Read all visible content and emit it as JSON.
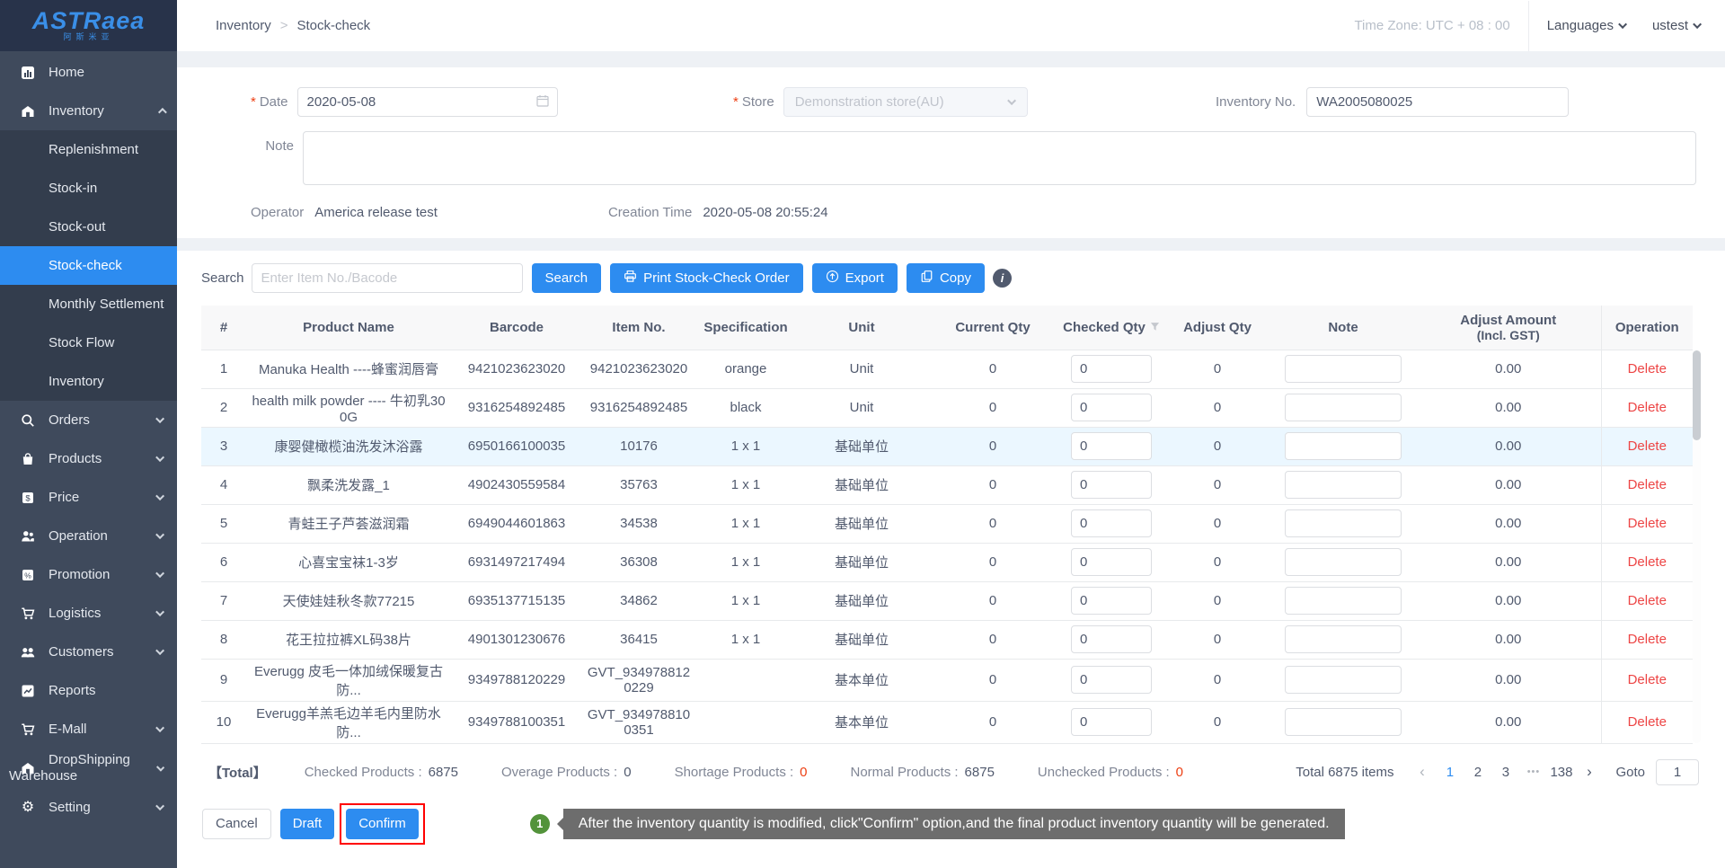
{
  "brand": {
    "logo_text": "ASTRaea",
    "logo_sub": "阿斯米亚"
  },
  "topbar": {
    "breadcrumb_parent": "Inventory",
    "breadcrumb_current": "Stock-check",
    "timezone": "Time Zone: UTC + 08 : 00",
    "languages_label": "Languages",
    "user": "ustest"
  },
  "sidebar": {
    "items": [
      {
        "type": "item",
        "label": "Home",
        "icon": "chart-bar-icon"
      },
      {
        "type": "item",
        "label": "Inventory",
        "icon": "warehouse-icon",
        "chevron": "up"
      },
      {
        "type": "subitem",
        "label": "Replenishment"
      },
      {
        "type": "subitem",
        "label": "Stock-in"
      },
      {
        "type": "subitem",
        "label": "Stock-out"
      },
      {
        "type": "subitem",
        "label": "Stock-check",
        "active": true
      },
      {
        "type": "subitem",
        "label": "Monthly Settlement"
      },
      {
        "type": "subitem",
        "label": "Stock Flow"
      },
      {
        "type": "subitem",
        "label": "Inventory"
      },
      {
        "type": "item",
        "label": "Orders",
        "icon": "search-icon",
        "chevron": "down"
      },
      {
        "type": "item",
        "label": "Products",
        "icon": "bag-icon",
        "chevron": "down"
      },
      {
        "type": "item",
        "label": "Price",
        "icon": "price-tag-icon",
        "chevron": "down"
      },
      {
        "type": "item",
        "label": "Operation",
        "icon": "users-icon",
        "chevron": "down"
      },
      {
        "type": "item",
        "label": "Promotion",
        "icon": "promotion-tag-icon",
        "chevron": "down"
      },
      {
        "type": "item",
        "label": "Logistics",
        "icon": "cart-icon",
        "chevron": "down"
      },
      {
        "type": "item",
        "label": "Customers",
        "icon": "customers-icon",
        "chevron": "down"
      },
      {
        "type": "item",
        "label": "Reports",
        "icon": "report-chart-icon"
      },
      {
        "type": "item",
        "label": "E-Mall",
        "icon": "cart-icon",
        "chevron": "down"
      },
      {
        "type": "item",
        "label": "DropShipping Warehouse",
        "icon": "warehouse-icon",
        "chevron": "down"
      },
      {
        "type": "item",
        "label": "Setting",
        "icon": "gear-icon",
        "chevron": "down"
      }
    ]
  },
  "form": {
    "date": {
      "label": "Date",
      "required": true,
      "value": "2020-05-08"
    },
    "store": {
      "label": "Store",
      "required": true,
      "value": "Demonstration store(AU)"
    },
    "inventory_no": {
      "label": "Inventory No.",
      "value": "WA2005080025"
    },
    "note": {
      "label": "Note",
      "value": ""
    },
    "operator": {
      "label": "Operator",
      "value": "America release test"
    },
    "creation_time": {
      "label": "Creation Time",
      "value": "2020-05-08 20:55:24"
    }
  },
  "search": {
    "label": "Search",
    "placeholder": "Enter Item No./Bacode",
    "buttons": {
      "search": "Search",
      "print": "Print Stock-Check Order",
      "export": "Export",
      "copy": "Copy"
    }
  },
  "table": {
    "columns": [
      {
        "key": "num",
        "label": "#"
      },
      {
        "key": "name",
        "label": "Product Name"
      },
      {
        "key": "barcode",
        "label": "Barcode"
      },
      {
        "key": "item_no",
        "label": "Item No."
      },
      {
        "key": "spec",
        "label": "Specification"
      },
      {
        "key": "unit",
        "label": "Unit"
      },
      {
        "key": "current_qty",
        "label": "Current Qty"
      },
      {
        "key": "checked_qty",
        "label": "Checked Qty",
        "filter": true
      },
      {
        "key": "adjust_qty",
        "label": "Adjust Qty"
      },
      {
        "key": "note",
        "label": "Note"
      },
      {
        "key": "adjust_amount",
        "label": "Adjust Amount",
        "sub": "(Incl. GST)"
      },
      {
        "key": "operation",
        "label": "Operation"
      }
    ],
    "rows": [
      {
        "num": "1",
        "name": "Manuka Health ----蜂蜜润唇膏",
        "barcode": "9421023623020",
        "item_no": "9421023623020",
        "spec": "orange",
        "unit": "Unit",
        "current_qty": "0",
        "checked_qty": "0",
        "adjust_qty": "0",
        "note": "",
        "adjust_amount": "0.00",
        "operation": "Delete"
      },
      {
        "num": "2",
        "name": "health milk powder ---- 牛初乳300G",
        "barcode": "9316254892485",
        "item_no": "9316254892485",
        "spec": "black",
        "unit": "Unit",
        "current_qty": "0",
        "checked_qty": "0",
        "adjust_qty": "0",
        "note": "",
        "adjust_amount": "0.00",
        "operation": "Delete"
      },
      {
        "num": "3",
        "name": "康婴健橄榄油洗发沐浴露",
        "barcode": "6950166100035",
        "item_no": "10176",
        "spec": "1 x 1",
        "unit": "基础单位",
        "current_qty": "0",
        "checked_qty": "0",
        "adjust_qty": "0",
        "note": "",
        "adjust_amount": "0.00",
        "operation": "Delete",
        "highlighted": true
      },
      {
        "num": "4",
        "name": "飘柔洗发露_1",
        "barcode": "4902430559584",
        "item_no": "35763",
        "spec": "1 x 1",
        "unit": "基础单位",
        "current_qty": "0",
        "checked_qty": "0",
        "adjust_qty": "0",
        "note": "",
        "adjust_amount": "0.00",
        "operation": "Delete"
      },
      {
        "num": "5",
        "name": "青蛙王子芦荟滋润霜",
        "barcode": "6949044601863",
        "item_no": "34538",
        "spec": "1 x 1",
        "unit": "基础单位",
        "current_qty": "0",
        "checked_qty": "0",
        "adjust_qty": "0",
        "note": "",
        "adjust_amount": "0.00",
        "operation": "Delete"
      },
      {
        "num": "6",
        "name": "心喜宝宝袜1-3岁",
        "barcode": "6931497217494",
        "item_no": "36308",
        "spec": "1 x 1",
        "unit": "基础单位",
        "current_qty": "0",
        "checked_qty": "0",
        "adjust_qty": "0",
        "note": "",
        "adjust_amount": "0.00",
        "operation": "Delete"
      },
      {
        "num": "7",
        "name": "天使娃娃秋冬款77215",
        "barcode": "6935137715135",
        "item_no": "34862",
        "spec": "1 x 1",
        "unit": "基础单位",
        "current_qty": "0",
        "checked_qty": "0",
        "adjust_qty": "0",
        "note": "",
        "adjust_amount": "0.00",
        "operation": "Delete"
      },
      {
        "num": "8",
        "name": "花王拉拉裤XL码38片",
        "barcode": "4901301230676",
        "item_no": "36415",
        "spec": "1 x 1",
        "unit": "基础单位",
        "current_qty": "0",
        "checked_qty": "0",
        "adjust_qty": "0",
        "note": "",
        "adjust_amount": "0.00",
        "operation": "Delete"
      },
      {
        "num": "9",
        "name": "Everugg 皮毛一体加绒保暖复古防...",
        "barcode": "9349788120229",
        "item_no": "GVT_9349788120229",
        "spec": "",
        "unit": "基本单位",
        "current_qty": "0",
        "checked_qty": "0",
        "adjust_qty": "0",
        "note": "",
        "adjust_amount": "0.00",
        "operation": "Delete"
      },
      {
        "num": "10",
        "name": "Everugg羊羔毛边羊毛内里防水防...",
        "barcode": "9349788100351",
        "item_no": "GVT_9349788100351",
        "spec": "",
        "unit": "基本单位",
        "current_qty": "0",
        "checked_qty": "0",
        "adjust_qty": "0",
        "note": "",
        "adjust_amount": "0.00",
        "operation": "Delete"
      }
    ]
  },
  "totals": {
    "title": "【Total】",
    "items": [
      {
        "label": "Checked Products",
        "value": "6875",
        "red": false
      },
      {
        "label": "Overage Products",
        "value": "0",
        "red": false
      },
      {
        "label": "Shortage Products",
        "value": "0",
        "red": true
      },
      {
        "label": "Normal Products",
        "value": "6875",
        "red": false
      },
      {
        "label": "Unchecked Products",
        "value": "0",
        "red": true
      }
    ]
  },
  "pagination": {
    "total_label": "Total 6875 items",
    "pages": [
      {
        "label": "1",
        "active": true
      },
      {
        "label": "2"
      },
      {
        "label": "3"
      },
      {
        "label": "•••",
        "ellipsis": true
      },
      {
        "label": "138"
      }
    ],
    "goto_label": "Goto",
    "goto_value": "1"
  },
  "actions": {
    "cancel": "Cancel",
    "draft": "Draft",
    "confirm": "Confirm"
  },
  "annotation": {
    "step": "1",
    "text": "After the inventory quantity is modified, click\"Confirm\" option,and the final product inventory quantity will be generated."
  },
  "colors": {
    "accent": "#2d8cf0",
    "sidebar_bg": "#3f4a5c",
    "sidebar_submenu_bg": "#333d4d",
    "logo_bg": "#28334a",
    "logo_blue": "#3a8fe8",
    "highlight_row": "#ebf7ff",
    "delete_red": "#ed4545",
    "required_red": "#ed4014",
    "annotation_green": "#53933b",
    "annotation_box_red": "#ff0000",
    "tooltip_bg": "#6d6d6d"
  }
}
